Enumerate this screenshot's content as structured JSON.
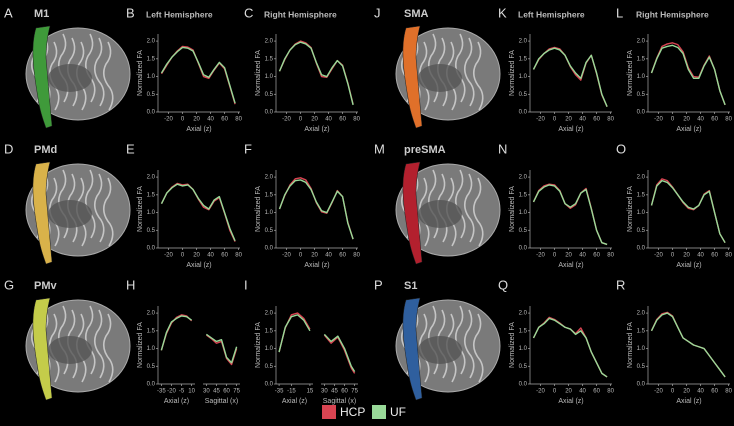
{
  "panels": [
    {
      "letter": "A",
      "name": "M1",
      "color": "#3f9a3a"
    },
    {
      "letter": "D",
      "name": "PMd",
      "color": "#d9b24a"
    },
    {
      "letter": "G",
      "name": "PMv",
      "color": "#c4cc4a"
    },
    {
      "letter": "J",
      "name": "SMA",
      "color": "#e0702a"
    },
    {
      "letter": "M",
      "name": "preSMA",
      "color": "#b3202e"
    },
    {
      "letter": "P",
      "name": "S1",
      "color": "#2f5f9e"
    }
  ],
  "legend": [
    {
      "name": "HCP",
      "color": "#d94452"
    },
    {
      "name": "UF",
      "color": "#98d998"
    }
  ],
  "chart_data": [
    {
      "type": "line",
      "letter": "B",
      "title": "Left Hemisphere",
      "ylabel": "Normalized FA",
      "xlabel": "Axial (z)",
      "x": [
        -30,
        -22.5,
        -15,
        -7.5,
        0,
        7.5,
        15,
        22.5,
        30,
        37.5,
        45,
        52.5,
        60,
        67.5,
        75
      ],
      "xlim": [
        -35,
        82
      ],
      "xticks": [
        -20,
        0,
        20,
        40,
        60,
        80
      ],
      "ylim": [
        0,
        2.2
      ],
      "yticks": [
        {
          "value": 0,
          "label": "0.0"
        },
        0.5,
        {
          "value": 1,
          "label": "1.0"
        },
        1.5,
        {
          "value": 2,
          "label": "2.0"
        }
      ],
      "series": [
        {
          "values": [
            1.08,
            1.32,
            1.55,
            1.72,
            1.85,
            1.83,
            1.75,
            1.38,
            1.0,
            0.95,
            1.18,
            1.38,
            1.22,
            0.72,
            0.22
          ]
        },
        {
          "values": [
            1.1,
            1.35,
            1.55,
            1.7,
            1.82,
            1.8,
            1.72,
            1.4,
            1.05,
            0.98,
            1.2,
            1.4,
            1.25,
            0.75,
            0.25
          ]
        }
      ]
    },
    {
      "type": "line",
      "letter": "C",
      "title": "Right Hemisphere",
      "ylabel": "Normalized FA",
      "xlabel": "Axial (z)",
      "x": [
        -30,
        -22.5,
        -15,
        -7.5,
        0,
        7.5,
        15,
        22.5,
        30,
        37.5,
        45,
        52.5,
        60,
        67.5,
        75
      ],
      "xlim": [
        -35,
        82
      ],
      "xticks": [
        -20,
        0,
        20,
        40,
        60,
        80
      ],
      "ylim": [
        0,
        2.2
      ],
      "yticks": [
        {
          "value": 0,
          "label": "0.0"
        },
        0.5,
        {
          "value": 1,
          "label": "1.0"
        },
        1.5,
        {
          "value": 2,
          "label": "2.0"
        }
      ],
      "series": [
        {
          "values": [
            1.15,
            1.48,
            1.75,
            1.92,
            2.0,
            1.95,
            1.82,
            1.38,
            1.0,
            0.98,
            1.22,
            1.45,
            1.32,
            0.82,
            0.22
          ]
        },
        {
          "values": [
            1.15,
            1.5,
            1.75,
            1.9,
            1.97,
            1.92,
            1.8,
            1.4,
            1.05,
            1.0,
            1.25,
            1.45,
            1.3,
            0.8,
            0.2
          ]
        }
      ]
    },
    {
      "type": "line",
      "letter": "E",
      "ylabel": "Normalized FA",
      "xlabel": "Axial (z)",
      "x": [
        -30,
        -22.5,
        -15,
        -7.5,
        0,
        7.5,
        15,
        22.5,
        30,
        37.5,
        45,
        52.5,
        60,
        67.5,
        75
      ],
      "xlim": [
        -35,
        82
      ],
      "xticks": [
        -20,
        0,
        20,
        40,
        60,
        80
      ],
      "ylim": [
        0,
        2.2
      ],
      "yticks": [
        {
          "value": 0,
          "label": "0.0"
        },
        0.5,
        {
          "value": 1,
          "label": "1.0"
        },
        1.5,
        {
          "value": 2,
          "label": "2.0"
        }
      ],
      "series": [
        {
          "values": [
            1.25,
            1.55,
            1.72,
            1.82,
            1.78,
            1.8,
            1.65,
            1.38,
            1.15,
            1.08,
            1.32,
            1.42,
            0.98,
            0.5,
            0.18
          ]
        },
        {
          "values": [
            1.25,
            1.55,
            1.7,
            1.8,
            1.75,
            1.78,
            1.65,
            1.4,
            1.2,
            1.1,
            1.35,
            1.45,
            1.0,
            0.55,
            0.2
          ]
        }
      ]
    },
    {
      "type": "line",
      "letter": "F",
      "ylabel": "Normalized FA",
      "xlabel": "Axial (z)",
      "x": [
        -30,
        -22.5,
        -15,
        -7.5,
        0,
        7.5,
        15,
        22.5,
        30,
        37.5,
        45,
        52.5,
        60,
        67.5,
        75
      ],
      "xlim": [
        -35,
        82
      ],
      "xticks": [
        -20,
        0,
        20,
        40,
        60,
        80
      ],
      "ylim": [
        0,
        2.2
      ],
      "yticks": [
        {
          "value": 0,
          "label": "0.0"
        },
        0.5,
        {
          "value": 1,
          "label": "1.0"
        },
        1.5,
        {
          "value": 2,
          "label": "2.0"
        }
      ],
      "series": [
        {
          "values": [
            1.1,
            1.48,
            1.78,
            1.95,
            1.98,
            1.92,
            1.68,
            1.28,
            1.02,
            0.98,
            1.28,
            1.62,
            1.45,
            0.72,
            0.25
          ]
        },
        {
          "values": [
            1.1,
            1.5,
            1.75,
            1.9,
            1.92,
            1.85,
            1.65,
            1.3,
            1.05,
            1.0,
            1.3,
            1.6,
            1.45,
            0.7,
            0.25
          ]
        }
      ]
    },
    {
      "type": "line",
      "letter": "H",
      "ylabel": "Normalized FA",
      "ylim": [
        0,
        2.2
      ],
      "yticks": [
        {
          "value": 0,
          "label": "0.0"
        },
        0.5,
        {
          "value": 1,
          "label": "1.0"
        },
        1.5,
        {
          "value": 2,
          "label": "2.0"
        }
      ],
      "subplots": [
        {
          "xlabel": "Axial (z)",
          "x": [
            -35,
            -27.5,
            -20,
            -12.5,
            -5,
            2.5,
            10
          ],
          "xlim": [
            -40,
            15
          ],
          "xticks": [
            -35,
            -20,
            -5,
            10
          ],
          "series": [
            {
              "values": [
                0.95,
                1.42,
                1.72,
                1.88,
                1.95,
                1.92,
                1.78
              ]
            },
            {
              "values": [
                0.95,
                1.45,
                1.75,
                1.85,
                1.92,
                1.9,
                1.8
              ]
            }
          ]
        },
        {
          "xlabel": "Sagittal (x)",
          "x": [
            30,
            37.5,
            45,
            52.5,
            60,
            67.5,
            75
          ],
          "xlim": [
            25,
            80
          ],
          "xticks": [
            30,
            45,
            60,
            75
          ],
          "series": [
            {
              "values": [
                1.38,
                1.28,
                1.15,
                1.2,
                0.72,
                0.55,
                1.0
              ]
            },
            {
              "values": [
                1.4,
                1.3,
                1.2,
                1.25,
                0.75,
                0.6,
                1.05
              ]
            }
          ]
        }
      ]
    },
    {
      "type": "line",
      "letter": "I",
      "ylabel": "Normalized FA",
      "ylim": [
        0,
        2.2
      ],
      "yticks": [
        {
          "value": 0,
          "label": "0.0"
        },
        0.5,
        {
          "value": 1,
          "label": "1.0"
        },
        1.5,
        {
          "value": 2,
          "label": "2.0"
        }
      ],
      "subplots": [
        {
          "xlabel": "Axial (z)",
          "x": [
            -35,
            -25,
            -15,
            -5,
            5,
            15
          ],
          "xlim": [
            -40,
            20
          ],
          "xticks": [
            -35,
            -15,
            15
          ],
          "series": [
            {
              "values": [
                0.9,
                1.58,
                1.95,
                2.0,
                1.85,
                1.55
              ]
            },
            {
              "values": [
                0.9,
                1.6,
                1.9,
                1.95,
                1.8,
                1.5
              ]
            }
          ]
        },
        {
          "xlabel": "Sagittal (x)",
          "x": [
            30,
            40,
            50,
            60,
            70,
            75
          ],
          "xlim": [
            25,
            80
          ],
          "xticks": [
            30,
            45,
            60,
            75
          ],
          "series": [
            {
              "values": [
                1.38,
                1.15,
                1.32,
                0.95,
                0.45,
                0.3
              ]
            },
            {
              "values": [
                1.4,
                1.2,
                1.35,
                1.0,
                0.5,
                0.35
              ]
            }
          ]
        }
      ]
    },
    {
      "type": "line",
      "letter": "K",
      "title": "Left Hemisphere",
      "ylabel": "Normalized FA",
      "xlabel": "Axial (z)",
      "x": [
        -30,
        -22.5,
        -15,
        -7.5,
        0,
        7.5,
        15,
        22.5,
        30,
        37.5,
        45,
        52.5,
        60,
        67.5,
        75
      ],
      "xlim": [
        -35,
        82
      ],
      "xticks": [
        -20,
        0,
        20,
        40,
        60,
        80
      ],
      "ylim": [
        0,
        2.2
      ],
      "yticks": [
        {
          "value": 0,
          "label": "0.0"
        },
        0.5,
        {
          "value": 1,
          "label": "1.0"
        },
        1.5,
        {
          "value": 2,
          "label": "2.0"
        }
      ],
      "series": [
        {
          "values": [
            1.2,
            1.48,
            1.65,
            1.78,
            1.82,
            1.78,
            1.6,
            1.28,
            1.05,
            0.9,
            1.38,
            1.6,
            1.08,
            0.48,
            0.15
          ]
        },
        {
          "values": [
            1.2,
            1.5,
            1.65,
            1.75,
            1.8,
            1.75,
            1.6,
            1.3,
            1.1,
            0.95,
            1.4,
            1.6,
            1.1,
            0.5,
            0.15
          ]
        }
      ]
    },
    {
      "type": "line",
      "letter": "L",
      "title": "Right Hemisphere",
      "ylabel": "Normalized FA",
      "xlabel": "Axial (z)",
      "x": [
        -30,
        -22.5,
        -15,
        -7.5,
        0,
        7.5,
        15,
        22.5,
        30,
        37.5,
        45,
        52.5,
        60,
        67.5,
        75
      ],
      "xlim": [
        -35,
        82
      ],
      "xticks": [
        -20,
        0,
        20,
        40,
        60,
        80
      ],
      "ylim": [
        0,
        2.2
      ],
      "yticks": [
        {
          "value": 0,
          "label": "0.0"
        },
        0.5,
        {
          "value": 1,
          "label": "1.0"
        },
        1.5,
        {
          "value": 2,
          "label": "2.0"
        }
      ],
      "series": [
        {
          "values": [
            1.1,
            1.52,
            1.85,
            1.92,
            1.95,
            1.9,
            1.7,
            1.25,
            1.0,
            0.98,
            1.32,
            1.58,
            1.2,
            0.6,
            0.2
          ]
        },
        {
          "values": [
            1.1,
            1.5,
            1.8,
            1.85,
            1.88,
            1.82,
            1.65,
            1.2,
            0.95,
            0.95,
            1.3,
            1.55,
            1.2,
            0.6,
            0.2
          ]
        }
      ]
    },
    {
      "type": "line",
      "letter": "N",
      "ylabel": "Normalized FA",
      "xlabel": "Axial (z)",
      "x": [
        -30,
        -22.5,
        -15,
        -7.5,
        0,
        7.5,
        15,
        22.5,
        30,
        37.5,
        45,
        52.5,
        60,
        67.5,
        75
      ],
      "xlim": [
        -35,
        82
      ],
      "xticks": [
        -20,
        0,
        20,
        40,
        60,
        80
      ],
      "ylim": [
        0,
        2.2
      ],
      "yticks": [
        {
          "value": 0,
          "label": "0.0"
        },
        0.5,
        {
          "value": 1,
          "label": "1.0"
        },
        1.5,
        {
          "value": 2,
          "label": "2.0"
        }
      ],
      "series": [
        {
          "values": [
            1.3,
            1.62,
            1.75,
            1.8,
            1.78,
            1.62,
            1.25,
            1.12,
            1.22,
            1.55,
            1.68,
            1.12,
            0.5,
            0.15,
            0.1
          ]
        },
        {
          "values": [
            1.3,
            1.6,
            1.72,
            1.78,
            1.75,
            1.6,
            1.25,
            1.15,
            1.25,
            1.55,
            1.65,
            1.1,
            0.5,
            0.15,
            0.1
          ]
        }
      ]
    },
    {
      "type": "line",
      "letter": "O",
      "ylabel": "Normalized FA",
      "xlabel": "Axial (z)",
      "x": [
        -30,
        -22.5,
        -15,
        -7.5,
        0,
        7.5,
        15,
        22.5,
        30,
        37.5,
        45,
        52.5,
        60,
        67.5,
        75
      ],
      "xlim": [
        -35,
        82
      ],
      "xticks": [
        -20,
        0,
        20,
        40,
        60,
        80
      ],
      "ylim": [
        0,
        2.2
      ],
      "yticks": [
        {
          "value": 0,
          "label": "0.0"
        },
        0.5,
        {
          "value": 1,
          "label": "1.0"
        },
        1.5,
        {
          "value": 2,
          "label": "2.0"
        }
      ],
      "series": [
        {
          "values": [
            1.2,
            1.78,
            1.95,
            1.9,
            1.72,
            1.5,
            1.28,
            1.12,
            1.08,
            1.2,
            1.52,
            1.62,
            1.0,
            0.4,
            0.15
          ]
        },
        {
          "values": [
            1.2,
            1.75,
            1.9,
            1.85,
            1.7,
            1.5,
            1.3,
            1.15,
            1.1,
            1.2,
            1.5,
            1.6,
            1.0,
            0.4,
            0.15
          ]
        }
      ]
    },
    {
      "type": "line",
      "letter": "Q",
      "ylabel": "Normalized FA",
      "xlabel": "Axial (z)",
      "x": [
        -30,
        -22.5,
        -15,
        -7.5,
        0,
        7.5,
        15,
        22.5,
        30,
        37.5,
        45,
        52.5,
        60,
        67.5,
        75
      ],
      "xlim": [
        -35,
        82
      ],
      "xticks": [
        -20,
        0,
        20,
        40,
        60,
        80
      ],
      "ylim": [
        0,
        2.2
      ],
      "yticks": [
        {
          "value": 0,
          "label": "0.0"
        },
        0.5,
        {
          "value": 1,
          "label": "1.0"
        },
        1.5,
        {
          "value": 2,
          "label": "2.0"
        }
      ],
      "series": [
        {
          "values": [
            1.3,
            1.6,
            1.72,
            1.88,
            1.82,
            1.72,
            1.6,
            1.55,
            1.42,
            1.58,
            1.3,
            0.9,
            0.6,
            0.3,
            0.2
          ]
        },
        {
          "values": [
            1.3,
            1.6,
            1.7,
            1.85,
            1.8,
            1.7,
            1.6,
            1.55,
            1.4,
            1.5,
            1.3,
            0.9,
            0.6,
            0.3,
            0.2
          ]
        }
      ]
    },
    {
      "type": "line",
      "letter": "R",
      "ylabel": "Normalized FA",
      "xlabel": "Axial (z)",
      "x": [
        -30,
        -22.5,
        -15,
        -7.5,
        0,
        7.5,
        15,
        22.5,
        30,
        37.5,
        45,
        52.5,
        60,
        67.5,
        75
      ],
      "xlim": [
        -35,
        82
      ],
      "xticks": [
        -20,
        0,
        20,
        40,
        60,
        80
      ],
      "ylim": [
        0,
        2.2
      ],
      "yticks": [
        {
          "value": 0,
          "label": "0.0"
        },
        0.5,
        {
          "value": 1,
          "label": "1.0"
        },
        1.5,
        {
          "value": 2,
          "label": "2.0"
        }
      ],
      "series": [
        {
          "values": [
            1.5,
            1.82,
            1.98,
            2.02,
            1.92,
            1.6,
            1.3,
            1.2,
            1.1,
            1.05,
            1.0,
            0.8,
            0.6,
            0.4,
            0.2
          ]
        },
        {
          "values": [
            1.5,
            1.8,
            1.95,
            2.0,
            1.9,
            1.6,
            1.3,
            1.2,
            1.1,
            1.05,
            1.0,
            0.8,
            0.6,
            0.4,
            0.2
          ]
        }
      ]
    }
  ]
}
